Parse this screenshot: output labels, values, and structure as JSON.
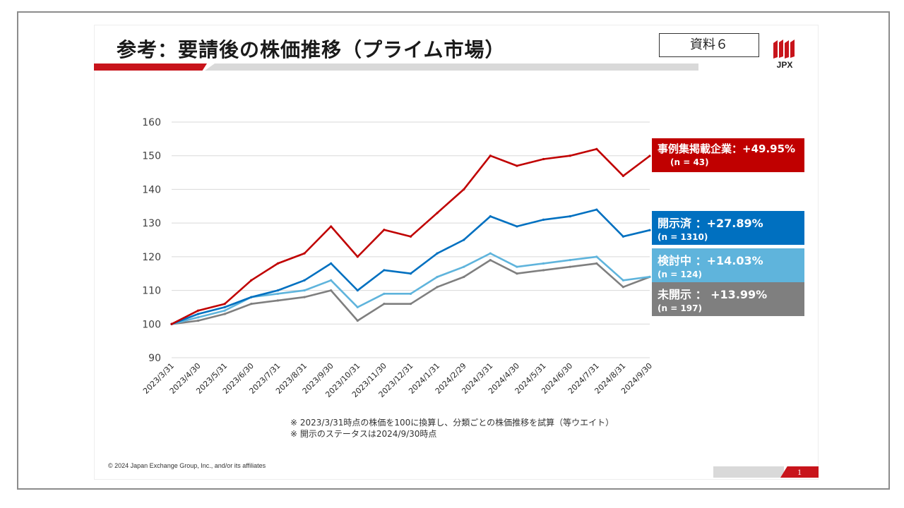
{
  "slide": {
    "title": "参考：要請後の株価推移（プライム市場）",
    "doc_label": "資料６",
    "logo_text": "JPX",
    "notes": [
      "※ 2023/3/31時点の株価を100に換算し、分類ごとの株価推移を試算（等ウエイト）",
      "※ 開示のステータスは2024/9/30時点"
    ],
    "copyright": "© 2024 Japan Exchange Group, Inc., and/or its affiliates",
    "page_number": "1"
  },
  "legend": [
    {
      "label": "事例集掲載企業：+49.95%",
      "n": "(n = 43)",
      "color": "#c00000"
    },
    {
      "label": "開示済 ：+27.89%",
      "n": "(n = 1310)",
      "color": "#0070c0"
    },
    {
      "label": "検討中 ：+14.03%",
      "n": "(n = 124)",
      "color": "#5fb4dc"
    },
    {
      "label": "未開示 ： +13.99%",
      "n": "(n = 197)",
      "color": "#7f7f7f"
    }
  ],
  "chart_data": {
    "type": "line",
    "x": [
      "2023/3/31",
      "2023/4/30",
      "2023/5/31",
      "2023/6/30",
      "2023/7/31",
      "2023/8/31",
      "2023/9/30",
      "2023/10/31",
      "2023/11/30",
      "2023/12/31",
      "2024/1/31",
      "2024/2/29",
      "2024/3/31",
      "2024/4/30",
      "2024/5/31",
      "2024/6/30",
      "2024/7/31",
      "2024/8/31",
      "2024/9/30"
    ],
    "ylim": [
      90,
      160
    ],
    "yticks": [
      90,
      100,
      110,
      120,
      130,
      140,
      150,
      160
    ],
    "grid": true,
    "series": [
      {
        "name": "事例集掲載企業",
        "color": "#c00000",
        "values": [
          100,
          104,
          106,
          113,
          118,
          121,
          129,
          120,
          128,
          126,
          133,
          140,
          150,
          147,
          149,
          150,
          152,
          144,
          149.95
        ]
      },
      {
        "name": "開示済",
        "color": "#0070c0",
        "values": [
          100,
          103,
          105,
          108,
          110,
          113,
          118,
          110,
          116,
          115,
          121,
          125,
          132,
          129,
          131,
          132,
          134,
          126,
          127.89
        ]
      },
      {
        "name": "検討中",
        "color": "#5fb4dc",
        "values": [
          100,
          102,
          104,
          108,
          109,
          110,
          113,
          105,
          109,
          109,
          114,
          117,
          121,
          117,
          118,
          119,
          120,
          113,
          114.03
        ]
      },
      {
        "name": "未開示",
        "color": "#7f7f7f",
        "values": [
          100,
          101,
          103,
          106,
          107,
          108,
          110,
          101,
          106,
          106,
          111,
          114,
          119,
          115,
          116,
          117,
          118,
          111,
          113.99
        ]
      }
    ]
  }
}
